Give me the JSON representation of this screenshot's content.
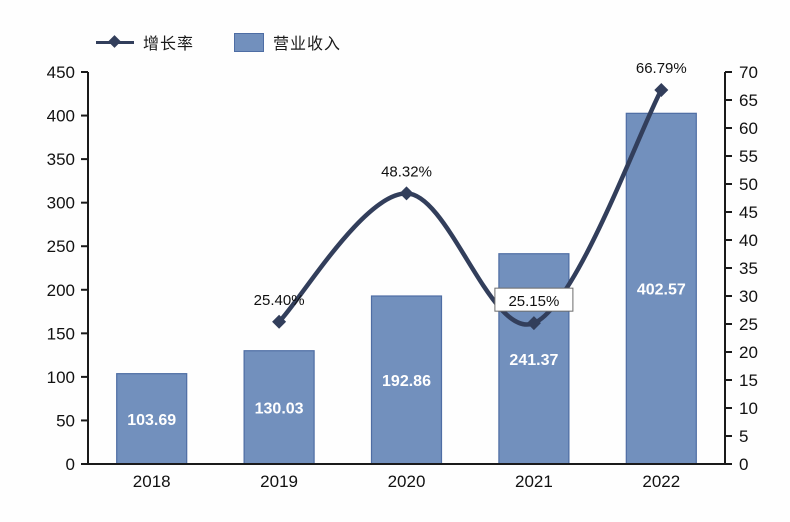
{
  "colors": {
    "background": "#fefefe",
    "bar_fill": "#7290bd",
    "bar_border": "#4e6da4",
    "line": "#323e5b",
    "axis": "#1a1a1a",
    "tick_text": "#111111",
    "bar_label_text": "#ffffff",
    "percent_label_text": "#111111",
    "label_box_bg": "#ffffff",
    "label_box_border": "#6b6b6b"
  },
  "legend": {
    "items": [
      {
        "label": "增长率",
        "marker": "line-diamond"
      },
      {
        "label": "营业收入",
        "marker": "square"
      }
    ]
  },
  "chart_data": {
    "type": "combo",
    "categories": [
      "2018",
      "2019",
      "2020",
      "2021",
      "2022"
    ],
    "series": [
      {
        "name": "营业收入",
        "type": "bar",
        "axis": "left",
        "values": [
          103.69,
          130.03,
          192.86,
          241.37,
          402.57
        ],
        "data_labels": [
          "103.69",
          "130.03",
          "192.86",
          "241.37",
          "402.57"
        ]
      },
      {
        "name": "增长率",
        "type": "line",
        "axis": "right",
        "values": [
          null,
          25.4,
          48.32,
          25.15,
          66.79
        ],
        "data_labels": [
          null,
          "25.40%",
          "48.32%",
          "25.15%",
          "66.79%"
        ],
        "boxed_label_index": 3
      }
    ],
    "left_axis": {
      "min": 0,
      "max": 450,
      "step": 50
    },
    "right_axis": {
      "min": 0,
      "max": 70,
      "step": 5
    },
    "grid": false,
    "legend_position": "top-left"
  }
}
